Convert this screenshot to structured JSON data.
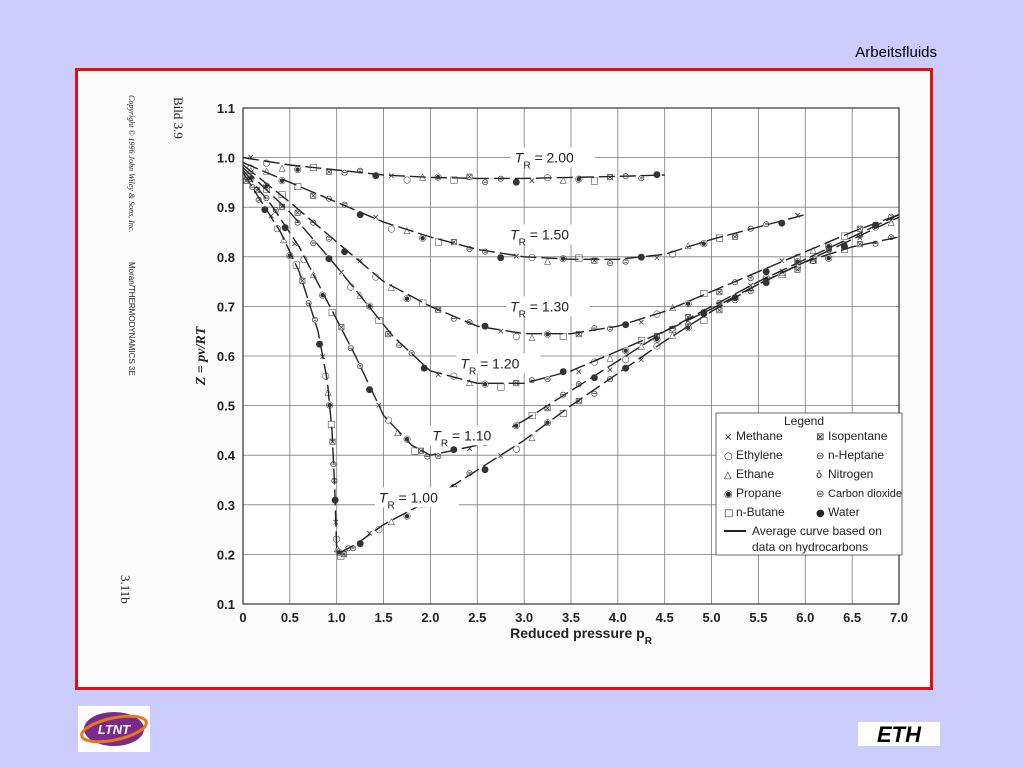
{
  "slide": {
    "title": "Arbeitsfluids"
  },
  "side_text": {
    "copyright": "Copyright © 1996 John Wiley & Sons, Inc.",
    "bild": "Bild 3.9",
    "moran": "Moran/THERMODYNAMICS 3E",
    "number": "3.11b"
  },
  "logos": {
    "left": "LTNT",
    "right": "ETH"
  },
  "chart_data": {
    "type": "line",
    "title": "",
    "xlabel": "Reduced pressure p_R",
    "ylabel": "Z = pv/RT",
    "xlim": [
      0,
      7.0
    ],
    "ylim": [
      0.1,
      1.1
    ],
    "grid": true,
    "x_ticks": [
      "0",
      "0.5",
      "1.0",
      "1.5",
      "2.0",
      "2.5",
      "3.0",
      "3.5",
      "4.0",
      "4.5",
      "5.0",
      "5.5",
      "6.0",
      "6.5",
      "7.0"
    ],
    "y_ticks": [
      "0.1",
      "0.2",
      "0.3",
      "0.4",
      "0.5",
      "0.6",
      "0.7",
      "0.8",
      "0.9",
      "1.0",
      "1.1"
    ],
    "series": [
      {
        "name": "T_R = 2.00",
        "label_text": "2.00",
        "label_x": 2.9,
        "label_y": 0.99,
        "x": [
          0,
          0.5,
          1.0,
          1.5,
          2.0,
          2.5,
          3.0,
          3.5,
          4.0,
          4.5
        ],
        "y": [
          1.0,
          0.985,
          0.975,
          0.965,
          0.96,
          0.958,
          0.958,
          0.96,
          0.962,
          0.965
        ]
      },
      {
        "name": "T_R = 1.50",
        "label_text": "1.50",
        "label_x": 2.85,
        "label_y": 0.835,
        "x": [
          0,
          0.5,
          1.0,
          1.5,
          2.0,
          2.5,
          3.0,
          3.5,
          4.0,
          4.5,
          5.0,
          5.5,
          6.0
        ],
        "y": [
          0.99,
          0.95,
          0.91,
          0.87,
          0.84,
          0.815,
          0.8,
          0.795,
          0.795,
          0.805,
          0.835,
          0.86,
          0.885
        ]
      },
      {
        "name": "T_R = 1.30",
        "label_text": "1.30",
        "label_x": 2.85,
        "label_y": 0.69,
        "x": [
          0,
          0.5,
          1.0,
          1.5,
          2.0,
          2.5,
          3.0,
          3.5,
          4.0,
          4.5,
          5.0,
          5.5,
          6.0,
          6.5,
          7.0
        ],
        "y": [
          0.985,
          0.91,
          0.83,
          0.75,
          0.7,
          0.66,
          0.645,
          0.645,
          0.66,
          0.69,
          0.73,
          0.77,
          0.81,
          0.85,
          0.885
        ]
      },
      {
        "name": "T_R = 1.20",
        "label_text": "1.20",
        "label_x": 2.32,
        "label_y": 0.575,
        "x": [
          0,
          0.5,
          1.0,
          1.3,
          1.6,
          2.0,
          2.5,
          3.0,
          3.5,
          4.0,
          4.5,
          5.0,
          5.5,
          6.0,
          6.5,
          7.0
        ],
        "y": [
          0.98,
          0.89,
          0.78,
          0.71,
          0.64,
          0.57,
          0.545,
          0.545,
          0.57,
          0.61,
          0.65,
          0.695,
          0.745,
          0.79,
          0.835,
          0.88
        ]
      },
      {
        "name": "T_R = 1.10",
        "label_text": "1.10",
        "label_x": 2.02,
        "label_y": 0.43,
        "x": [
          0,
          0.3,
          0.6,
          0.9,
          1.2,
          1.5,
          1.8,
          2.0,
          2.5,
          3.0,
          3.5,
          4.0,
          4.5,
          5.0,
          5.5,
          6.0,
          6.5,
          7.0
        ],
        "y": [
          0.975,
          0.905,
          0.82,
          0.71,
          0.6,
          0.48,
          0.42,
          0.4,
          0.42,
          0.47,
          0.53,
          0.59,
          0.65,
          0.7,
          0.75,
          0.795,
          0.84,
          0.885
        ]
      },
      {
        "name": "T_R = 1.00",
        "label_text": "1.00",
        "label_x": 1.45,
        "label_y": 0.305,
        "x": [
          0,
          0.2,
          0.4,
          0.6,
          0.8,
          0.9,
          0.95,
          0.98,
          1.0,
          1.05,
          1.2,
          1.5,
          2.0,
          2.5,
          3.0,
          3.5,
          4.0,
          4.5,
          5.0,
          5.5,
          6.0,
          6.5,
          7.0
        ],
        "y": [
          0.97,
          0.91,
          0.85,
          0.77,
          0.65,
          0.55,
          0.45,
          0.33,
          0.21,
          0.205,
          0.22,
          0.26,
          0.31,
          0.37,
          0.43,
          0.5,
          0.565,
          0.63,
          0.69,
          0.745,
          0.79,
          0.82,
          0.84
        ]
      }
    ],
    "legend": {
      "title": "Legend",
      "items": [
        {
          "symbol": "×",
          "label": "Methane"
        },
        {
          "symbol": "○",
          "label": "Ethylene"
        },
        {
          "symbol": "△",
          "label": "Ethane"
        },
        {
          "symbol": "◉",
          "label": "Propane"
        },
        {
          "symbol": "□",
          "label": "n-Butane"
        },
        {
          "symbol": "⊠",
          "label": "Isopentane"
        },
        {
          "symbol": "⊖",
          "label": "n-Heptane"
        },
        {
          "symbol": "ǒ",
          "label": "Nitrogen"
        },
        {
          "symbol": "⊜",
          "label": "Carbon dioxide"
        },
        {
          "symbol": "●",
          "label": "Water"
        }
      ],
      "line_label": "Average curve based on data on hydrocarbons"
    }
  }
}
